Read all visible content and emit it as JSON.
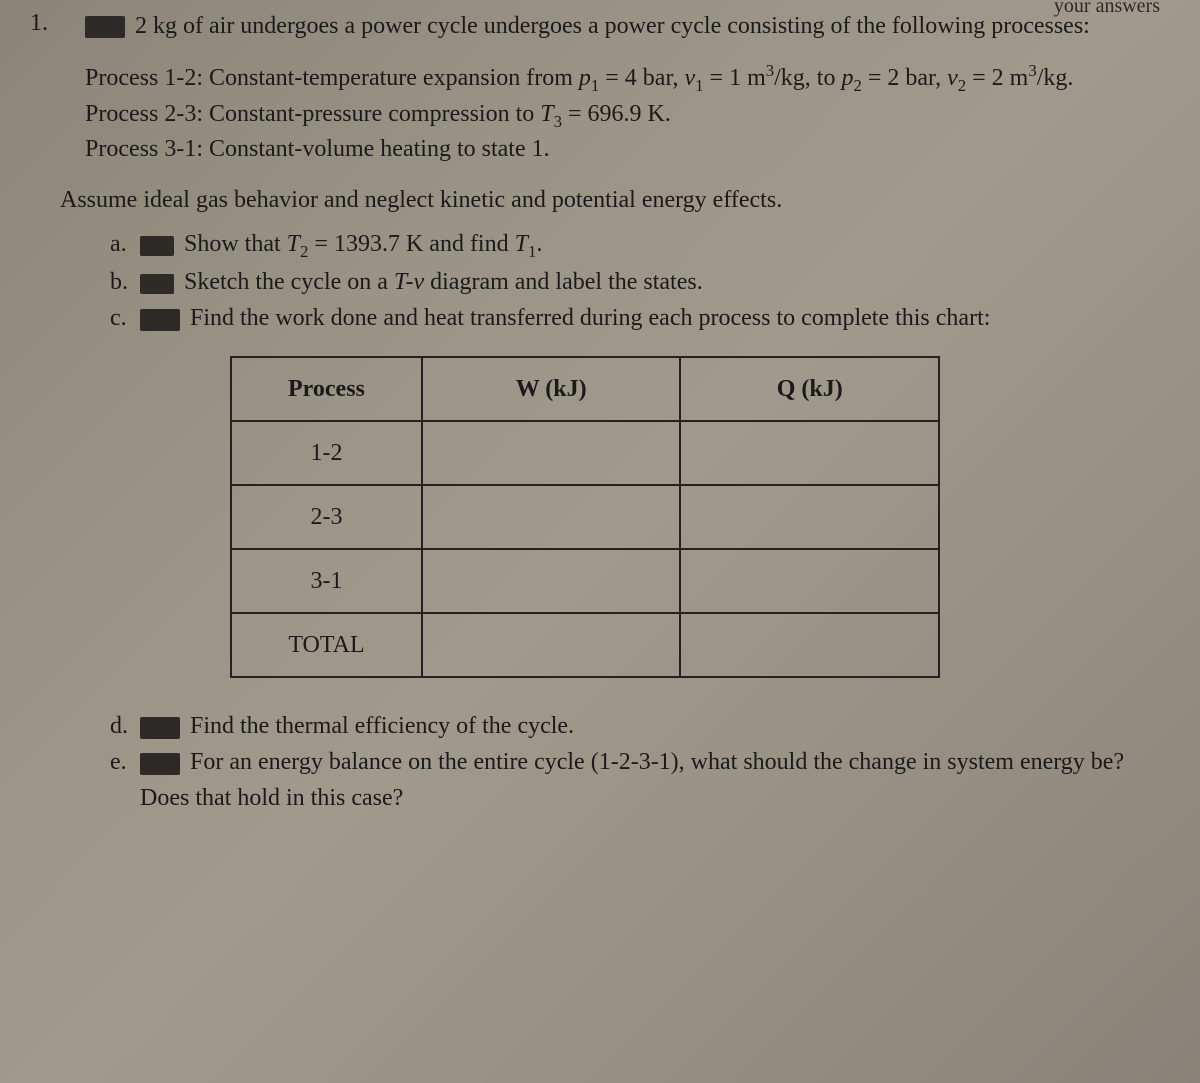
{
  "corner": "your answers",
  "problem_number": "1.",
  "lead": "2 kg of air undergoes a power cycle undergoes a power cycle consisting of the following processes:",
  "processes": {
    "p12_pre": "Process 1-2: Constant-temperature expansion from ",
    "p12_eq": "p₁ = 4 bar, v₁ = 1 m³/kg, to p₂ = 2 bar, v₂ = 2 m³/kg.",
    "p23": "Process 2-3: Constant-pressure compression to T₃ = 696.9 K.",
    "p31": "Process 3-1: Constant-volume heating to state 1."
  },
  "assume": "Assume ideal gas behavior and neglect kinetic and potential energy effects.",
  "parts": {
    "a": {
      "label": "a.",
      "text": "Show that T₂ = 1393.7 K and find T₁."
    },
    "b": {
      "label": "b.",
      "text": "Sketch the cycle on a T-v diagram and label the states."
    },
    "c": {
      "label": "c.",
      "text": "Find the work done and heat transferred during each process to complete this chart:"
    },
    "d": {
      "label": "d.",
      "text": "Find the thermal efficiency of the cycle."
    },
    "e": {
      "label": "e.",
      "text": "For an energy balance on the entire cycle (1-2-3-1), what should the change in system energy be? Does that hold in this case?"
    }
  },
  "table": {
    "headers": [
      "Process",
      "W (kJ)",
      "Q (kJ)"
    ],
    "rows": [
      "1-2",
      "2-3",
      "3-1",
      "TOTAL"
    ]
  },
  "italic_vars": true
}
